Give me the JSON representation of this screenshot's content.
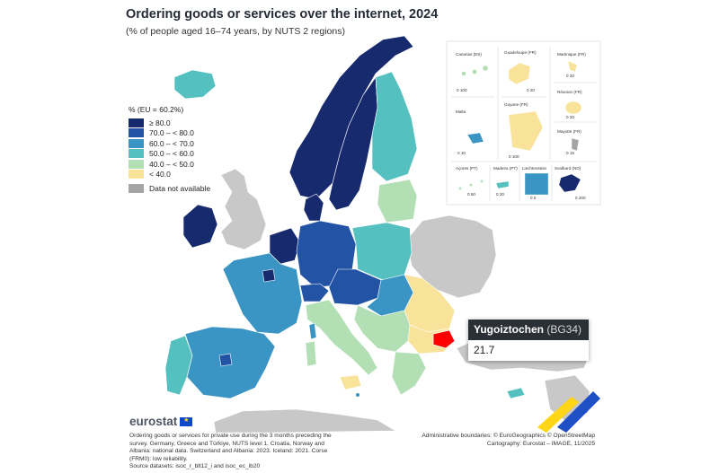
{
  "title": "Ordering goods or services over the internet, 2024",
  "subtitle": "(% of people aged 16–74 years, by NUTS 2 regions)",
  "legend": {
    "heading": "% (EU = 60.2%)",
    "classes": [
      {
        "label": "≥ 80.0",
        "color": "#172a6e"
      },
      {
        "label": "70.0 – < 80.0",
        "color": "#2253a5"
      },
      {
        "label": "60.0 – < 70.0",
        "color": "#3a94c4"
      },
      {
        "label": "50.0 – < 60.0",
        "color": "#55c0c0"
      },
      {
        "label": "40.0 – < 50.0",
        "color": "#b3dfb5"
      },
      {
        "label": "< 40.0",
        "color": "#f9e39b"
      }
    ],
    "not_available": {
      "label": "Data not available",
      "color": "#a5a5a5"
    }
  },
  "insets": [
    {
      "label": "Canarias (ES)",
      "scale": "0 100"
    },
    {
      "label": "Guadeloupe (FR)",
      "scale": "0 20"
    },
    {
      "label": "Martinique (FR)",
      "scale": "0 20"
    },
    {
      "label": "Réunion (FR)",
      "scale": "0 20"
    },
    {
      "label": "Malta",
      "scale": "0 10"
    },
    {
      "label": "Guyane (FR)",
      "scale": "0 100"
    },
    {
      "label": "Mayotte (FR)",
      "scale": "0 15"
    },
    {
      "label": "Açores (PT)",
      "scale": "0 50"
    },
    {
      "label": "Madeira (PT)",
      "scale": "0 20"
    },
    {
      "label": "Liechtenstein",
      "scale": "0 5"
    },
    {
      "label": "Svalbard (NO)",
      "scale": "0 200"
    }
  ],
  "tooltip": {
    "region": "Yugoiztochen",
    "code": "(BG34)",
    "value": "21.7"
  },
  "highlight_color": "#ff0000",
  "logo": {
    "text": "eurostat"
  },
  "footnote": [
    "Ordering goods or services for private use during the 3 months preceding the",
    "survey. Germany, Greece and Türkiye, NUTS level 1. Croatia, Norway and",
    "Albania: national data. Switzerland and Albania: 2023. Iceland: 2021. Corse",
    "(FRM0): low reliability.",
    "Source datasets: isoc_r_blt12_i and isoc_ec_ib20"
  ],
  "credits": [
    "Administrative boundaries: © EuroGeographics © OpenStreetMap",
    "Cartography: Eurostat – IMAGE, 11/2025"
  ]
}
